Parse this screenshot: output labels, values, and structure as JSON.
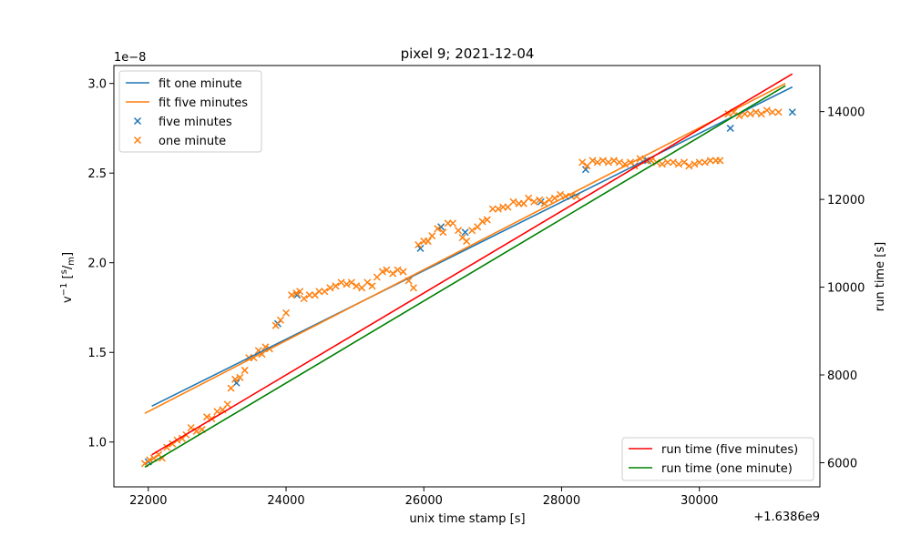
{
  "chart_data": {
    "type": "scatter",
    "title": "pixel 9; 2021-12-04",
    "xlabel": "unix time stamp [s]",
    "x_offset_label": "+1.6386e9",
    "ylabel_left": "v⁻¹ [s/m]",
    "ylabel_left_parts": {
      "base": "v",
      "exp": "−1",
      "unit_num": "s",
      "unit_den": "m"
    },
    "y_scale_label": "1e−8",
    "ylabel_right": "run time [s]",
    "xlim": [
      21500,
      31750
    ],
    "ylim_left": [
      0.75,
      3.1
    ],
    "ylim_right": [
      5450,
      15050
    ],
    "x_ticks": [
      22000,
      24000,
      26000,
      28000,
      30000
    ],
    "x_tick_labels": [
      "22000",
      "24000",
      "26000",
      "28000",
      "30000"
    ],
    "y_ticks_left": [
      1.0,
      1.5,
      2.0,
      2.5,
      3.0
    ],
    "y_tick_labels_left": [
      "1.0",
      "1.5",
      "2.0",
      "2.5",
      "3.0"
    ],
    "y_ticks_right": [
      6000,
      8000,
      10000,
      12000,
      14000
    ],
    "y_tick_labels_right": [
      "6000",
      "8000",
      "10000",
      "12000",
      "14000"
    ],
    "grid": false,
    "colors": {
      "blue": "#1f77b4",
      "orange": "#ff7f0e",
      "red": "#ff0000",
      "green": "#008000"
    },
    "legend_left": {
      "placement": "upper-left",
      "entries": [
        {
          "label": "fit one minute",
          "marker": "line",
          "color": "#1f77b4"
        },
        {
          "label": "fit five minutes",
          "marker": "line",
          "color": "#ff7f0e"
        },
        {
          "label": "five minutes",
          "marker": "x",
          "color": "#1f77b4"
        },
        {
          "label": "one minute",
          "marker": "x",
          "color": "#ff7f0e"
        }
      ]
    },
    "legend_right": {
      "placement": "lower-right",
      "entries": [
        {
          "label": "run time (five minutes)",
          "marker": "line",
          "color": "#ff0000"
        },
        {
          "label": "run time (one minute)",
          "marker": "line",
          "color": "#008000"
        }
      ]
    },
    "series": [
      {
        "name": "fit one minute",
        "kind": "line",
        "axis": "left",
        "color": "#1f77b4",
        "points": [
          [
            22050,
            1.2
          ],
          [
            31350,
            2.98
          ]
        ]
      },
      {
        "name": "fit five minutes",
        "kind": "line",
        "axis": "left",
        "color": "#ff7f0e",
        "points": [
          [
            21950,
            1.16
          ],
          [
            31250,
            3.0
          ]
        ]
      },
      {
        "name": "run time (five minutes)",
        "kind": "line",
        "axis": "right",
        "color": "#ff0000",
        "points": [
          [
            22050,
            6180
          ],
          [
            31350,
            14860
          ]
        ]
      },
      {
        "name": "run time (one minute)",
        "kind": "line",
        "axis": "right",
        "color": "#008000",
        "points": [
          [
            21950,
            5900
          ],
          [
            31250,
            14590
          ]
        ]
      },
      {
        "name": "five minutes",
        "kind": "x",
        "axis": "left",
        "color": "#1f77b4",
        "points": [
          [
            22000,
            0.89
          ],
          [
            23280,
            1.33
          ],
          [
            23880,
            1.66
          ],
          [
            24160,
            1.82
          ],
          [
            25950,
            2.08
          ],
          [
            26250,
            2.2
          ],
          [
            26600,
            2.17
          ],
          [
            27700,
            2.34
          ],
          [
            28350,
            2.52
          ],
          [
            29250,
            2.57
          ],
          [
            30450,
            2.75
          ],
          [
            31350,
            2.84
          ]
        ]
      },
      {
        "name": "one minute",
        "kind": "x",
        "axis": "left",
        "color": "#ff7f0e",
        "points": [
          [
            21950,
            0.88
          ],
          [
            22020,
            0.9
          ],
          [
            22080,
            0.91
          ],
          [
            22150,
            0.93
          ],
          [
            22200,
            0.91
          ],
          [
            22270,
            0.97
          ],
          [
            22350,
            0.99
          ],
          [
            22420,
            1.01
          ],
          [
            22490,
            1.02
          ],
          [
            22550,
            1.04
          ],
          [
            22620,
            1.08
          ],
          [
            22700,
            1.06
          ],
          [
            22780,
            1.07
          ],
          [
            22850,
            1.14
          ],
          [
            22920,
            1.13
          ],
          [
            23000,
            1.17
          ],
          [
            23080,
            1.18
          ],
          [
            23150,
            1.21
          ],
          [
            23200,
            1.3
          ],
          [
            23260,
            1.35
          ],
          [
            23330,
            1.36
          ],
          [
            23400,
            1.4
          ],
          [
            23460,
            1.47
          ],
          [
            23530,
            1.47
          ],
          [
            23600,
            1.51
          ],
          [
            23650,
            1.49
          ],
          [
            23700,
            1.53
          ],
          [
            23760,
            1.52
          ],
          [
            23850,
            1.65
          ],
          [
            23920,
            1.68
          ],
          [
            24000,
            1.72
          ],
          [
            24080,
            1.82
          ],
          [
            24150,
            1.83
          ],
          [
            24200,
            1.84
          ],
          [
            24260,
            1.8
          ],
          [
            24340,
            1.82
          ],
          [
            24420,
            1.82
          ],
          [
            24480,
            1.84
          ],
          [
            24560,
            1.84
          ],
          [
            24640,
            1.86
          ],
          [
            24720,
            1.87
          ],
          [
            24800,
            1.89
          ],
          [
            24880,
            1.88
          ],
          [
            24950,
            1.89
          ],
          [
            25020,
            1.87
          ],
          [
            25100,
            1.86
          ],
          [
            25180,
            1.89
          ],
          [
            25250,
            1.87
          ],
          [
            25320,
            1.92
          ],
          [
            25400,
            1.95
          ],
          [
            25460,
            1.96
          ],
          [
            25550,
            1.94
          ],
          [
            25620,
            1.96
          ],
          [
            25700,
            1.95
          ],
          [
            25780,
            1.9
          ],
          [
            25850,
            1.86
          ],
          [
            25920,
            2.1
          ],
          [
            26000,
            2.12
          ],
          [
            26060,
            2.12
          ],
          [
            26120,
            2.15
          ],
          [
            26200,
            2.19
          ],
          [
            26280,
            2.17
          ],
          [
            26350,
            2.22
          ],
          [
            26420,
            2.22
          ],
          [
            26500,
            2.18
          ],
          [
            26560,
            2.14
          ],
          [
            26620,
            2.12
          ],
          [
            26700,
            2.18
          ],
          [
            26780,
            2.2
          ],
          [
            26850,
            2.23
          ],
          [
            26920,
            2.24
          ],
          [
            27000,
            2.3
          ],
          [
            27080,
            2.3
          ],
          [
            27150,
            2.31
          ],
          [
            27220,
            2.31
          ],
          [
            27300,
            2.34
          ],
          [
            27380,
            2.33
          ],
          [
            27450,
            2.33
          ],
          [
            27520,
            2.36
          ],
          [
            27600,
            2.34
          ],
          [
            27680,
            2.35
          ],
          [
            27750,
            2.33
          ],
          [
            27820,
            2.35
          ],
          [
            27900,
            2.36
          ],
          [
            27980,
            2.38
          ],
          [
            28060,
            2.37
          ],
          [
            28140,
            2.37
          ],
          [
            28220,
            2.37
          ],
          [
            28300,
            2.56
          ],
          [
            28370,
            2.54
          ],
          [
            28450,
            2.57
          ],
          [
            28520,
            2.56
          ],
          [
            28600,
            2.57
          ],
          [
            28680,
            2.56
          ],
          [
            28760,
            2.57
          ],
          [
            28840,
            2.56
          ],
          [
            28920,
            2.55
          ],
          [
            29000,
            2.56
          ],
          [
            29060,
            2.54
          ],
          [
            29140,
            2.58
          ],
          [
            29220,
            2.57
          ],
          [
            29300,
            2.57
          ],
          [
            29380,
            2.56
          ],
          [
            29460,
            2.55
          ],
          [
            29540,
            2.56
          ],
          [
            29620,
            2.56
          ],
          [
            29700,
            2.55
          ],
          [
            29780,
            2.56
          ],
          [
            29850,
            2.54
          ],
          [
            29930,
            2.55
          ],
          [
            30000,
            2.56
          ],
          [
            30080,
            2.56
          ],
          [
            30160,
            2.57
          ],
          [
            30240,
            2.57
          ],
          [
            30300,
            2.57
          ],
          [
            30420,
            2.83
          ],
          [
            30500,
            2.84
          ],
          [
            30580,
            2.82
          ],
          [
            30660,
            2.83
          ],
          [
            30740,
            2.83
          ],
          [
            30820,
            2.84
          ],
          [
            30900,
            2.83
          ],
          [
            30980,
            2.85
          ],
          [
            31060,
            2.84
          ],
          [
            31150,
            2.84
          ]
        ]
      }
    ]
  }
}
